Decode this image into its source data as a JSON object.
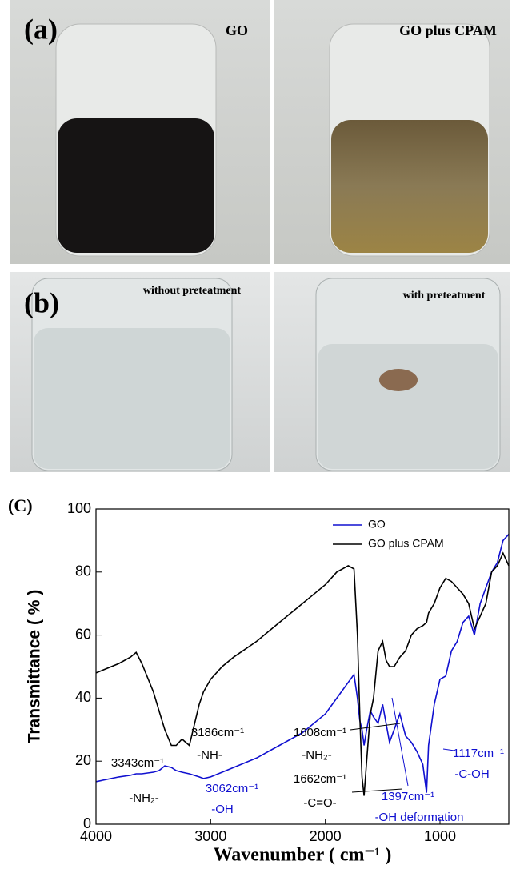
{
  "panels": [
    {
      "label": "(a)",
      "left": "GO",
      "right": "GO plus CPAM"
    },
    {
      "label": "(b)",
      "left": "without preteatment",
      "right": "with preteatment"
    }
  ],
  "chart_data": {
    "type": "line",
    "panel_label": "(C)",
    "x_label": "Wavenumber ( cm⁻¹ )",
    "y_label": "Transmittance ( % )",
    "x": [
      4000,
      3800,
      3700,
      3650,
      3600,
      3500,
      3450,
      3400,
      3343,
      3300,
      3250,
      3186,
      3100,
      3062,
      3000,
      2900,
      2800,
      2600,
      2400,
      2200,
      2000,
      1900,
      1800,
      1750,
      1720,
      1700,
      1680,
      1662,
      1640,
      1608,
      1580,
      1540,
      1500,
      1470,
      1440,
      1400,
      1350,
      1300,
      1250,
      1200,
      1150,
      1117,
      1100,
      1050,
      1000,
      950,
      900,
      850,
      800,
      750,
      700,
      650,
      600,
      550,
      500,
      450,
      400
    ],
    "series": [
      {
        "name": "GO",
        "color": "#1010d0",
        "values": [
          13.5,
          15,
          15.5,
          16,
          16,
          16.5,
          17,
          18.5,
          18,
          17,
          16.5,
          16,
          15,
          14.5,
          15,
          16.5,
          18,
          21,
          25,
          29,
          35,
          40,
          45,
          47.5,
          40,
          33,
          30,
          25,
          30,
          36,
          34,
          32,
          38,
          32,
          26,
          30,
          35,
          28,
          26,
          23,
          19,
          10,
          25,
          38,
          46,
          47,
          55,
          58,
          64,
          66,
          60,
          70,
          75,
          80,
          83,
          90,
          92
        ]
      },
      {
        "name": "GO plus CPAM",
        "color": "#000000",
        "values": [
          48,
          51,
          53,
          54.5,
          51,
          42,
          36,
          30,
          25,
          25,
          27,
          25,
          38,
          42,
          46,
          50,
          53,
          58,
          64,
          70,
          76,
          80,
          82,
          81,
          60,
          35,
          15,
          9,
          20,
          35,
          40,
          55,
          58,
          52,
          50,
          50,
          53,
          55,
          60,
          62,
          63,
          64,
          67,
          70,
          75,
          78,
          77,
          75,
          73,
          70,
          62,
          66,
          70,
          80,
          82,
          86,
          82
        ]
      }
    ],
    "xlim": [
      4000,
      400
    ],
    "ylim": [
      0,
      100
    ],
    "xticks": [
      4000,
      3000,
      2000,
      1000
    ],
    "yticks": [
      0,
      20,
      40,
      60,
      80,
      100
    ],
    "legend": "upper right",
    "annotations": [
      {
        "text": "3343cm⁻¹",
        "color": "#000000"
      },
      {
        "text": "-NH₂-",
        "color": "#000000"
      },
      {
        "text": "3186cm⁻¹",
        "color": "#000000"
      },
      {
        "text": "-NH-",
        "color": "#000000"
      },
      {
        "text": "3062cm⁻¹",
        "color": "#1010d0"
      },
      {
        "text": "-OH",
        "color": "#1010d0"
      },
      {
        "text": "1608cm⁻¹",
        "color": "#000000"
      },
      {
        "text": "-NH₂-",
        "color": "#000000"
      },
      {
        "text": "1662cm⁻¹",
        "color": "#000000"
      },
      {
        "text": "-C=O-",
        "color": "#000000"
      },
      {
        "text": "1397cm⁻¹",
        "color": "#1010d0"
      },
      {
        "text": "-OH deformation",
        "color": "#1010d0"
      },
      {
        "text": "1117cm⁻¹",
        "color": "#1010d0"
      },
      {
        "text": "-C-OH",
        "color": "#1010d0"
      }
    ]
  }
}
